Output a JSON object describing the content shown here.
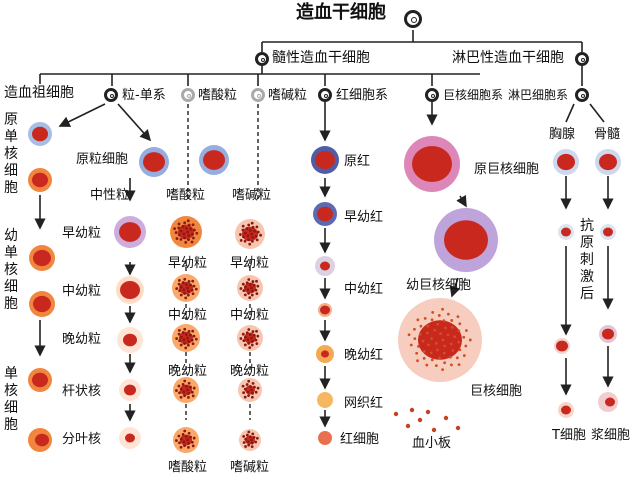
{
  "title": "造血干细胞",
  "branches": {
    "myeloid": "髓性造血干细胞",
    "lymphoid": "淋巴性造血干细胞"
  },
  "progenitors": {
    "ancestor": "造血祖细胞",
    "granulo_mono": "粒-单系",
    "eosinophil": "嗜酸粒",
    "basophil": "嗜碱粒",
    "erythroid": "红细胞系",
    "megakaryocyte": "巨核细胞系",
    "lymphocyte": "淋巴细胞系"
  },
  "mono_column": {
    "promonocyte": "原单核细胞",
    "young_monocyte": "幼单核细胞",
    "monocyte": "单核细胞"
  },
  "granulocyte": {
    "myeloblast": "原粒细胞",
    "neutrophil": "中性粒",
    "eosinophil": "嗜酸粒",
    "basophil": "嗜碱粒",
    "promyelocyte": "早幼粒",
    "myelocyte": "中幼粒",
    "metamyelocyte": "晚幼粒",
    "band": "杆状核",
    "segmented": "分叶核",
    "eo_promyelocyte": "早幼粒",
    "eo_myelocyte": "中幼粒",
    "eo_metamyelocyte": "晚幼粒",
    "eo_mature": "嗜酸粒",
    "baso_promyelocyte": "早幼粒",
    "baso_myelocyte": "中幼粒",
    "baso_metamyelocyte": "晚幼粒",
    "baso_mature": "嗜碱粒"
  },
  "erythroid": {
    "pronormoblast": "原红",
    "early": "早幼红",
    "intermediate": "中幼红",
    "late": "晚幼红",
    "reticulocyte": "网织红",
    "rbc": "红细胞"
  },
  "megakaryocyte": {
    "promega": "原巨核细胞",
    "young": "幼巨核细胞",
    "mega": "巨核细胞",
    "platelet": "血小板"
  },
  "lymphoid": {
    "thymus": "胸腺",
    "marrow": "骨髓",
    "antigen_note": "抗原刺激后",
    "t_cell": "T细胞",
    "plasma_cell": "浆细胞"
  },
  "colors": {
    "nucleus": "#c8281e",
    "cytoplasm": "#f07a2a",
    "mega_cyto": "#d97ab0",
    "line": "#222222"
  }
}
